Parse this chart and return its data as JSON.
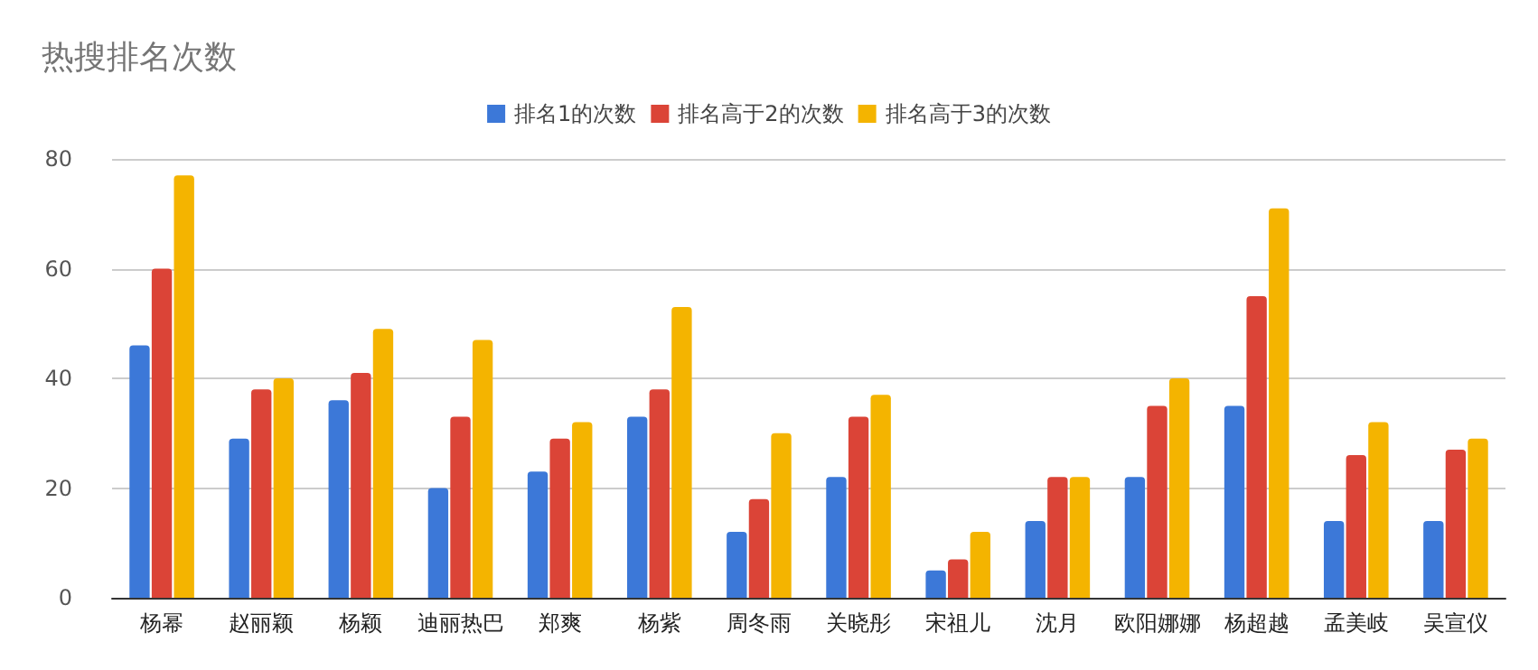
{
  "chart_data": {
    "type": "bar",
    "title": "热搜排名次数",
    "categories": [
      "杨幂",
      "赵丽颖",
      "杨颖",
      "迪丽热巴",
      "郑爽",
      "杨紫",
      "周冬雨",
      "关晓彤",
      "宋祖儿",
      "沈月",
      "欧阳娜娜",
      "杨超越",
      "孟美岐",
      "吴宣仪"
    ],
    "series": [
      {
        "name": "排名1的次数",
        "color": "#3c78d8",
        "values": [
          46,
          29,
          36,
          20,
          23,
          33,
          12,
          22,
          5,
          14,
          22,
          35,
          14,
          14
        ]
      },
      {
        "name": "排名高于2的次数",
        "color": "#db4437",
        "values": [
          60,
          38,
          41,
          33,
          29,
          38,
          18,
          33,
          7,
          22,
          35,
          55,
          26,
          27
        ]
      },
      {
        "name": "排名高于3的次数",
        "color": "#f4b400",
        "values": [
          77,
          40,
          49,
          47,
          32,
          53,
          30,
          37,
          12,
          22,
          40,
          71,
          32,
          29
        ]
      }
    ],
    "ylim": [
      0,
      80
    ],
    "yticks": [
      0,
      20,
      40,
      60,
      80
    ],
    "grid": "y",
    "legend": "top"
  }
}
